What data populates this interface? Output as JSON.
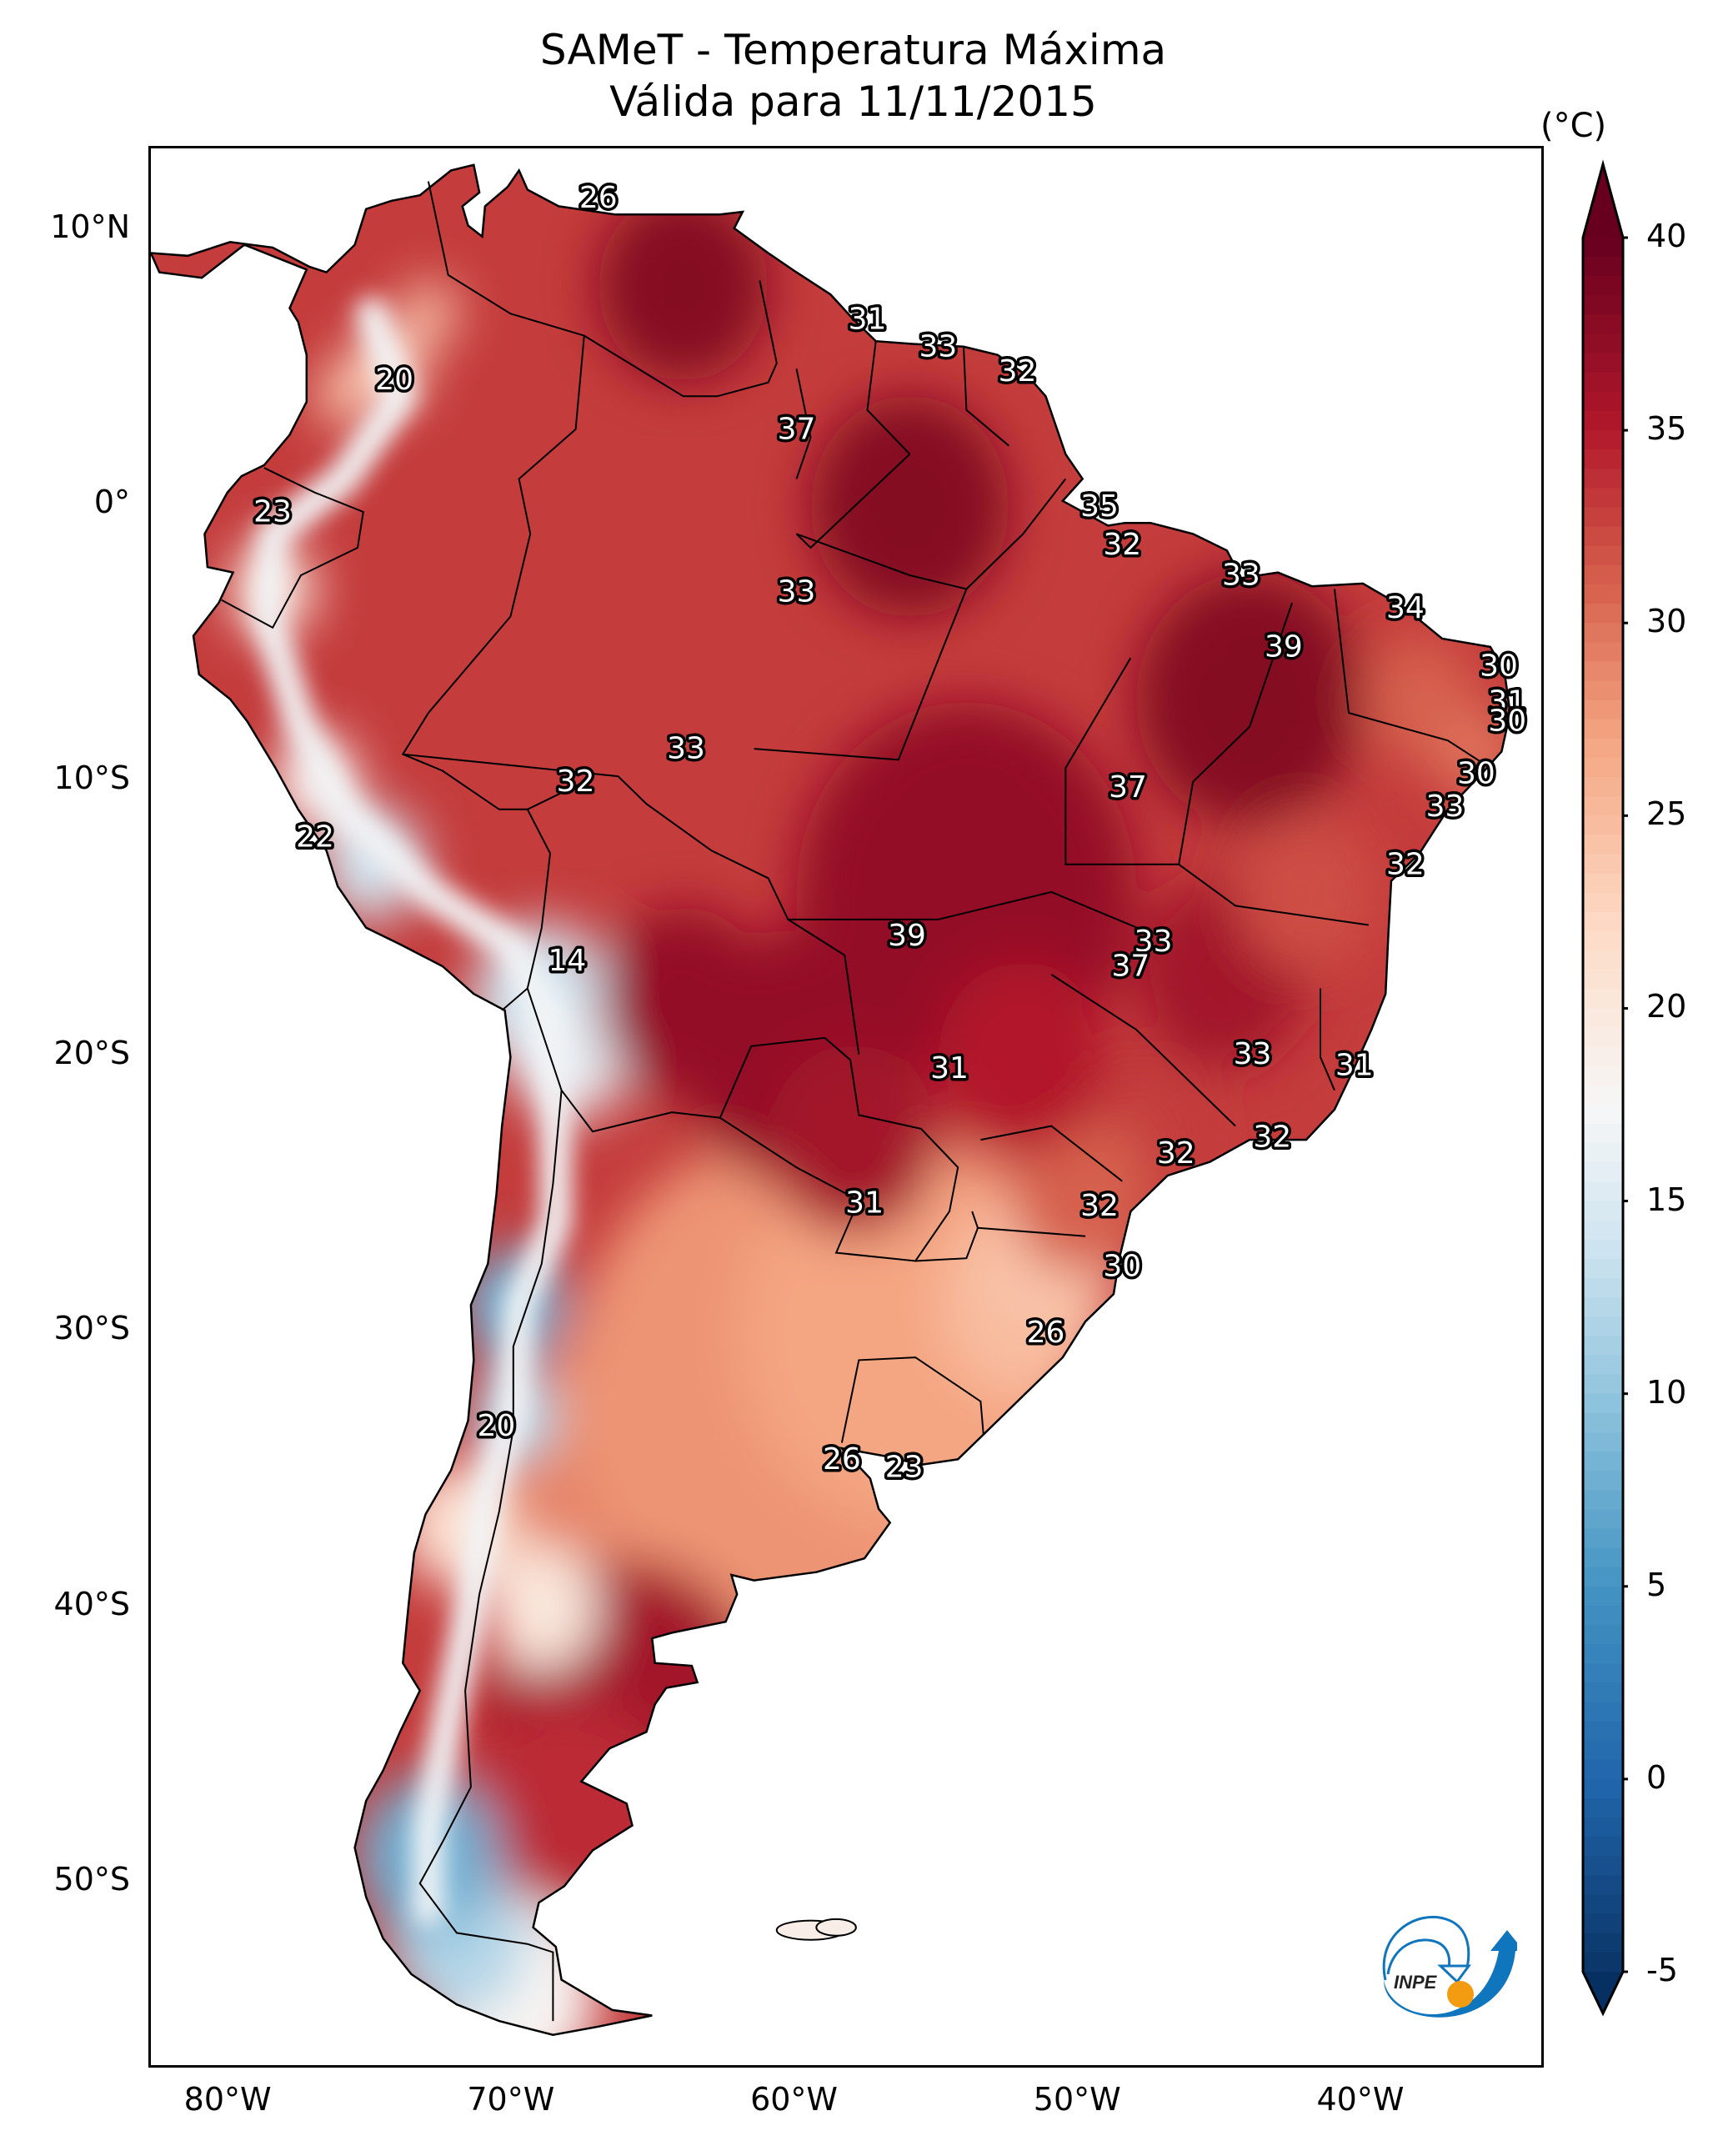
{
  "chart_data": {
    "type": "heatmap",
    "title": "SAMeT - Temperatura Máxima",
    "subtitle": "Válida para 11/11/2015",
    "variable": "Temperatura Máxima",
    "product": "SAMeT",
    "valid_date": "11/11/2015",
    "region": "South America",
    "x_axis": {
      "label": "",
      "ticks": [
        {
          "value": -80,
          "label": "80°W"
        },
        {
          "value": -70,
          "label": "70°W"
        },
        {
          "value": -60,
          "label": "60°W"
        },
        {
          "value": -50,
          "label": "50°W"
        },
        {
          "value": -40,
          "label": "40°W"
        }
      ],
      "range": [
        -82.8,
        -33.7
      ]
    },
    "y_axis": {
      "label": "",
      "ticks": [
        {
          "value": 10,
          "label": "10°N"
        },
        {
          "value": 0,
          "label": "0°"
        },
        {
          "value": -10,
          "label": "10°S"
        },
        {
          "value": -20,
          "label": "20°S"
        },
        {
          "value": -30,
          "label": "30°S"
        },
        {
          "value": -40,
          "label": "40°S"
        },
        {
          "value": -50,
          "label": "50°S"
        }
      ],
      "range": [
        -56.6,
        13.0
      ]
    },
    "colorbar": {
      "unit_label": "(°C)",
      "colormap": "RdBu_r",
      "range": [
        -5,
        40
      ],
      "extend": "both",
      "ticks": [
        {
          "value": 40,
          "label": "40"
        },
        {
          "value": 35,
          "label": "35"
        },
        {
          "value": 30,
          "label": "30"
        },
        {
          "value": 25,
          "label": "25"
        },
        {
          "value": 20,
          "label": "20"
        },
        {
          "value": 15,
          "label": "15"
        },
        {
          "value": 10,
          "label": "10"
        },
        {
          "value": 5,
          "label": "5"
        },
        {
          "value": 0,
          "label": "0"
        },
        {
          "value": -5,
          "label": "-5"
        }
      ],
      "stops": [
        {
          "value": -7,
          "color": "#053061"
        },
        {
          "value": -5,
          "color": "#0a3466"
        },
        {
          "value": 0,
          "color": "#2166ac"
        },
        {
          "value": 5,
          "color": "#4393c3"
        },
        {
          "value": 10,
          "color": "#92c5de"
        },
        {
          "value": 14,
          "color": "#d1e5f0"
        },
        {
          "value": 17.5,
          "color": "#f7f7f7"
        },
        {
          "value": 22,
          "color": "#fddbc7"
        },
        {
          "value": 27,
          "color": "#f4a582"
        },
        {
          "value": 31,
          "color": "#d6604d"
        },
        {
          "value": 35,
          "color": "#b2182b"
        },
        {
          "value": 40,
          "color": "#67001f"
        }
      ]
    },
    "station_labels": [
      {
        "lon": -67.0,
        "lat": 11.2,
        "value": 26
      },
      {
        "lon": -74.2,
        "lat": 4.6,
        "value": 20
      },
      {
        "lon": -57.5,
        "lat": 6.8,
        "value": 31
      },
      {
        "lon": -55.0,
        "lat": 5.8,
        "value": 33
      },
      {
        "lon": -52.2,
        "lat": 4.9,
        "value": 32
      },
      {
        "lon": -60.0,
        "lat": 2.8,
        "value": 37
      },
      {
        "lon": -78.5,
        "lat": -0.2,
        "value": 23
      },
      {
        "lon": -49.3,
        "lat": 0.0,
        "value": 35
      },
      {
        "lon": -48.5,
        "lat": -1.4,
        "value": 32
      },
      {
        "lon": -60.0,
        "lat": -3.1,
        "value": 33
      },
      {
        "lon": -44.3,
        "lat": -2.5,
        "value": 33
      },
      {
        "lon": -38.5,
        "lat": -3.7,
        "value": 34
      },
      {
        "lon": -42.8,
        "lat": -5.1,
        "value": 39
      },
      {
        "lon": -35.2,
        "lat": -5.8,
        "value": 30
      },
      {
        "lon": -34.9,
        "lat": -7.1,
        "value": 31
      },
      {
        "lon": -34.9,
        "lat": -7.8,
        "value": 30
      },
      {
        "lon": -36.0,
        "lat": -9.7,
        "value": 30
      },
      {
        "lon": -37.1,
        "lat": -10.9,
        "value": 33
      },
      {
        "lon": -63.9,
        "lat": -8.8,
        "value": 33
      },
      {
        "lon": -67.8,
        "lat": -10.0,
        "value": 32
      },
      {
        "lon": -48.3,
        "lat": -10.2,
        "value": 37
      },
      {
        "lon": -38.5,
        "lat": -13.0,
        "value": 32
      },
      {
        "lon": -77.0,
        "lat": -12.0,
        "value": 22
      },
      {
        "lon": -68.1,
        "lat": -16.5,
        "value": 14
      },
      {
        "lon": -56.1,
        "lat": -15.6,
        "value": 39
      },
      {
        "lon": -47.4,
        "lat": -15.8,
        "value": 33
      },
      {
        "lon": -48.2,
        "lat": -16.7,
        "value": 37
      },
      {
        "lon": -43.9,
        "lat": -19.9,
        "value": 33
      },
      {
        "lon": -40.3,
        "lat": -20.3,
        "value": 31
      },
      {
        "lon": -54.6,
        "lat": -20.4,
        "value": 31
      },
      {
        "lon": -43.2,
        "lat": -22.9,
        "value": 32
      },
      {
        "lon": -46.6,
        "lat": -23.5,
        "value": 32
      },
      {
        "lon": -57.6,
        "lat": -25.3,
        "value": 31
      },
      {
        "lon": -49.3,
        "lat": -25.4,
        "value": 32
      },
      {
        "lon": -48.5,
        "lat": -27.6,
        "value": 30
      },
      {
        "lon": -51.2,
        "lat": -30.0,
        "value": 26
      },
      {
        "lon": -70.6,
        "lat": -33.4,
        "value": 20
      },
      {
        "lon": -58.4,
        "lat": -34.6,
        "value": 26
      },
      {
        "lon": -56.2,
        "lat": -34.9,
        "value": 23
      }
    ]
  },
  "logo": {
    "text": "INPE",
    "colors": {
      "blue": "#0f75bc",
      "orange": "#f39c12"
    }
  }
}
